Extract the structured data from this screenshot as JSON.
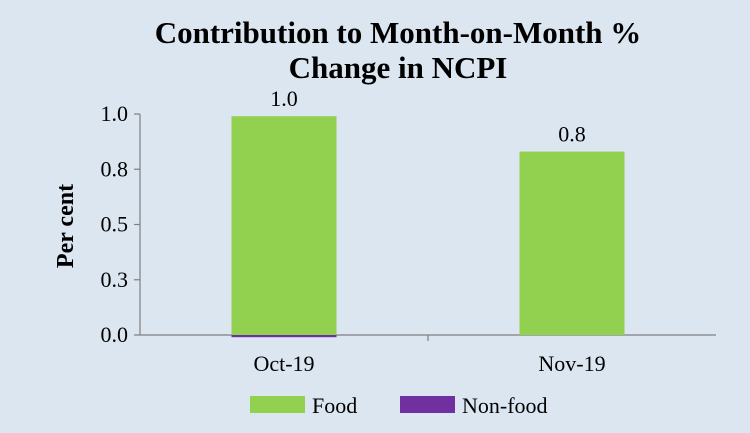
{
  "chart_data": {
    "type": "bar",
    "stacked": true,
    "title_lines": [
      "Contribution to Month-on-Month %",
      "Change in NCPI"
    ],
    "xlabel": "",
    "ylabel": "Per cent",
    "categories": [
      "Oct-19",
      "Nov-19"
    ],
    "series": [
      {
        "name": "Food",
        "values": [
          0.99,
          0.83
        ],
        "color": "#92d050"
      },
      {
        "name": "Non-food",
        "values": [
          -0.01,
          0.0
        ],
        "color": "#7030a0"
      }
    ],
    "data_labels": [
      "1.0",
      "0.8"
    ],
    "yticks": [
      0.0,
      0.25,
      0.5,
      0.75,
      1.0
    ],
    "ytick_labels": [
      "0.0",
      "0.3",
      "0.5",
      "0.8",
      "1.0"
    ],
    "ylim": [
      0.0,
      1.0
    ],
    "legend_position": "bottom"
  }
}
